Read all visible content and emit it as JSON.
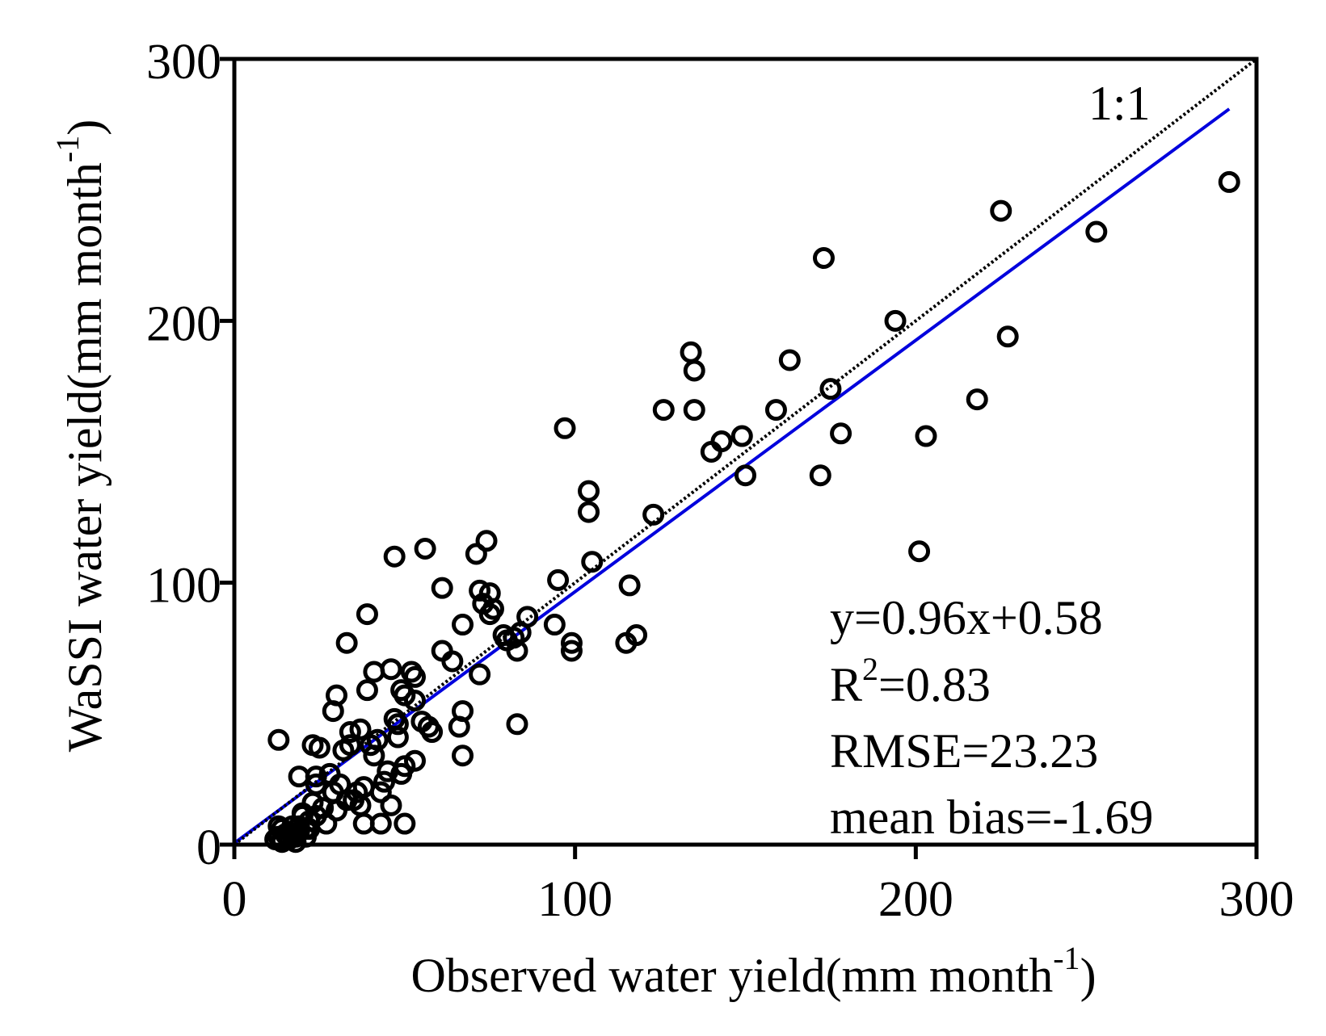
{
  "chart_data": {
    "type": "scatter",
    "xlabel": "Observed water yield(mm month",
    "xlabel_sup": "-1",
    "xlabel_close": ")",
    "ylabel": "WaSSI water yield(mm month",
    "ylabel_sup": "-1",
    "ylabel_close": ")",
    "xlim": [
      0,
      300
    ],
    "ylim": [
      0,
      300
    ],
    "x_ticks": [
      0,
      100,
      200,
      300
    ],
    "y_ticks": [
      0,
      100,
      200,
      300
    ],
    "x_tick_labels": [
      "0",
      "100",
      "200",
      "300"
    ],
    "y_tick_labels": [
      "0",
      "100",
      "200",
      "300"
    ],
    "one_to_one_label": "1:1",
    "fit_line": {
      "slope": 0.96,
      "intercept": 0.58,
      "x_range": [
        0,
        292
      ]
    },
    "stats": {
      "equation": "y=0.96x+0.58",
      "r2_prefix": "R",
      "r2_sup": "2",
      "r2_value": "=0.83",
      "rmse": "RMSE=23.23",
      "mean_bias": "mean bias=-1.69"
    },
    "colors": {
      "fit_line": "#0000dd",
      "one_to_one": "#000000",
      "points": "#000000"
    },
    "points": [
      [
        292,
        253
      ],
      [
        253,
        234
      ],
      [
        225,
        242
      ],
      [
        227,
        194
      ],
      [
        218,
        170
      ],
      [
        203,
        156
      ],
      [
        201,
        112
      ],
      [
        194,
        200
      ],
      [
        178,
        157
      ],
      [
        175,
        174
      ],
      [
        173,
        224
      ],
      [
        172,
        141
      ],
      [
        163,
        185
      ],
      [
        159,
        166
      ],
      [
        150,
        141
      ],
      [
        149,
        156
      ],
      [
        143,
        154
      ],
      [
        140,
        150
      ],
      [
        135,
        166
      ],
      [
        135,
        181
      ],
      [
        134,
        188
      ],
      [
        126,
        166
      ],
      [
        123,
        126
      ],
      [
        118,
        80
      ],
      [
        116,
        99
      ],
      [
        115,
        77
      ],
      [
        105,
        108
      ],
      [
        104,
        127
      ],
      [
        104,
        135
      ],
      [
        99,
        74
      ],
      [
        99,
        77
      ],
      [
        97,
        159
      ],
      [
        95,
        101
      ],
      [
        94,
        84
      ],
      [
        86,
        87
      ],
      [
        84,
        81
      ],
      [
        83,
        74
      ],
      [
        83,
        46
      ],
      [
        82,
        79
      ],
      [
        80,
        78
      ],
      [
        79,
        80
      ],
      [
        76,
        90
      ],
      [
        75,
        88
      ],
      [
        75,
        96
      ],
      [
        74,
        116
      ],
      [
        73,
        92
      ],
      [
        72,
        97
      ],
      [
        72,
        65
      ],
      [
        71,
        111
      ],
      [
        67,
        84
      ],
      [
        67,
        51
      ],
      [
        67,
        34
      ],
      [
        66,
        45
      ],
      [
        64,
        70
      ],
      [
        61,
        74
      ],
      [
        61,
        98
      ],
      [
        58,
        43
      ],
      [
        57,
        45
      ],
      [
        56,
        113
      ],
      [
        55,
        47
      ],
      [
        53,
        64
      ],
      [
        53,
        55
      ],
      [
        53,
        32
      ],
      [
        52,
        66
      ],
      [
        50,
        57
      ],
      [
        50,
        30
      ],
      [
        50,
        8
      ],
      [
        49,
        59
      ],
      [
        49,
        27
      ],
      [
        48,
        46
      ],
      [
        48,
        41
      ],
      [
        47,
        48
      ],
      [
        47,
        110
      ],
      [
        46,
        67
      ],
      [
        46,
        15
      ],
      [
        45,
        28
      ],
      [
        44,
        24
      ],
      [
        43,
        8
      ],
      [
        43,
        20
      ],
      [
        42,
        40
      ],
      [
        41,
        34
      ],
      [
        41,
        66
      ],
      [
        40,
        38
      ],
      [
        39,
        88
      ],
      [
        39,
        59
      ],
      [
        38,
        22
      ],
      [
        38,
        8
      ],
      [
        37,
        15
      ],
      [
        37,
        44
      ],
      [
        36,
        20
      ],
      [
        35,
        17
      ],
      [
        34,
        38
      ],
      [
        34,
        43
      ],
      [
        33,
        17
      ],
      [
        33,
        77
      ],
      [
        32,
        36
      ],
      [
        31,
        23
      ],
      [
        30,
        57
      ],
      [
        30,
        13
      ],
      [
        29,
        51
      ],
      [
        29,
        20
      ],
      [
        28,
        27
      ],
      [
        27,
        8
      ],
      [
        26,
        14
      ],
      [
        25,
        37
      ],
      [
        24,
        26
      ],
      [
        24,
        23
      ],
      [
        24,
        11
      ],
      [
        23,
        38
      ],
      [
        23,
        16
      ],
      [
        22,
        9
      ],
      [
        22,
        6
      ],
      [
        21,
        6
      ],
      [
        21,
        3
      ],
      [
        20,
        11
      ],
      [
        20,
        12
      ],
      [
        19,
        5
      ],
      [
        19,
        7
      ],
      [
        19,
        26
      ],
      [
        18,
        3
      ],
      [
        18,
        1
      ],
      [
        17,
        4
      ],
      [
        17,
        7
      ],
      [
        16,
        2
      ],
      [
        15,
        4
      ],
      [
        14,
        6
      ],
      [
        14,
        2
      ],
      [
        14,
        1
      ],
      [
        13,
        40
      ],
      [
        13,
        3
      ],
      [
        13,
        7
      ],
      [
        12,
        2
      ]
    ]
  }
}
